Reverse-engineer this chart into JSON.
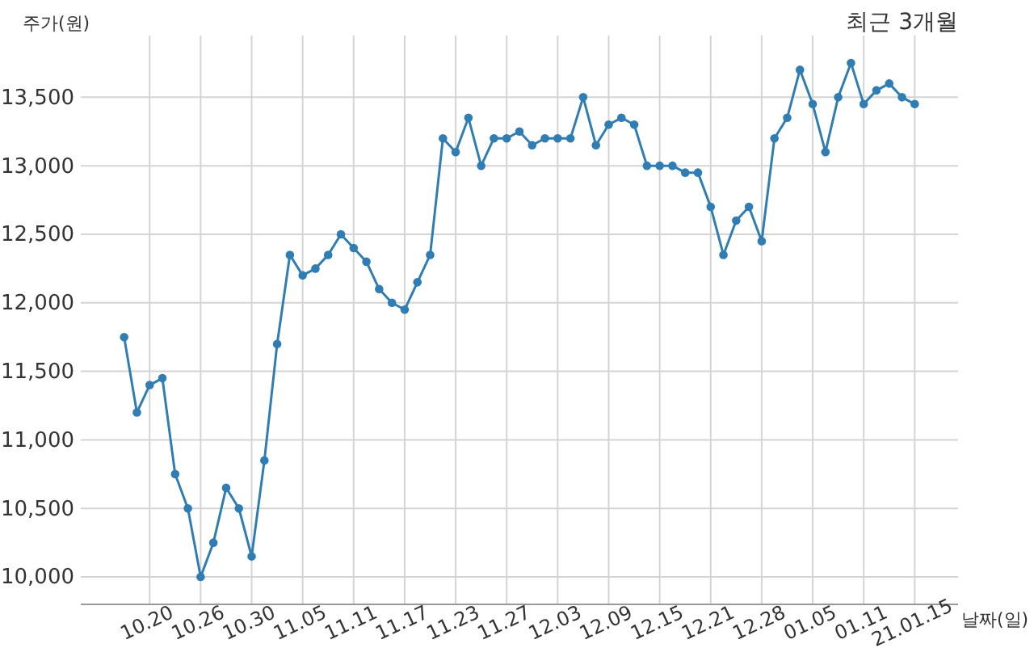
{
  "chart_data": {
    "type": "line",
    "title": "최근 3개월",
    "xlabel": "날짜(일)",
    "ylabel": "주가(원)",
    "categories": [
      null,
      null,
      "10.20",
      null,
      null,
      null,
      "10.26",
      null,
      null,
      null,
      "10.30",
      null,
      null,
      null,
      "11.05",
      null,
      null,
      null,
      "11.11",
      null,
      null,
      null,
      "11.17",
      null,
      null,
      null,
      "11.23",
      null,
      null,
      null,
      "11.27",
      null,
      null,
      null,
      "12.03",
      null,
      null,
      null,
      "12.09",
      null,
      null,
      null,
      "12.15",
      null,
      null,
      null,
      "12.21",
      null,
      null,
      null,
      "12.28",
      null,
      null,
      null,
      "01.05",
      null,
      null,
      null,
      "01.11",
      null,
      null,
      null,
      "21.01.15"
    ],
    "values": [
      11750,
      11200,
      11400,
      11450,
      10750,
      10500,
      10000,
      10250,
      10650,
      10500,
      10150,
      10850,
      11700,
      12350,
      12200,
      12250,
      12350,
      12500,
      12400,
      12300,
      12100,
      12000,
      11950,
      12150,
      12350,
      13200,
      13100,
      13350,
      13000,
      13200,
      13200,
      13250,
      13150,
      13200,
      13200,
      13200,
      13500,
      13150,
      13300,
      13350,
      13300,
      13000,
      13000,
      13000,
      12950,
      12950,
      12700,
      12350,
      12600,
      12700,
      12450,
      13200,
      13350,
      13700,
      13450,
      13100,
      13500,
      13750,
      13450,
      13550,
      13600,
      13500,
      13450
    ],
    "color": "#2f7db3",
    "ylim": [
      9800,
      13950
    ],
    "yticks": [
      {
        "value": 10000,
        "label": "10,000"
      },
      {
        "value": 10500,
        "label": "10,500"
      },
      {
        "value": 11000,
        "label": "11,000"
      },
      {
        "value": 11500,
        "label": "11,500"
      },
      {
        "value": 12000,
        "label": "12,000"
      },
      {
        "value": 12500,
        "label": "12,500"
      },
      {
        "value": 13000,
        "label": "13,000"
      },
      {
        "value": 13500,
        "label": "13,500"
      }
    ],
    "grid": true,
    "marker": "circle",
    "line_style": "solid"
  }
}
